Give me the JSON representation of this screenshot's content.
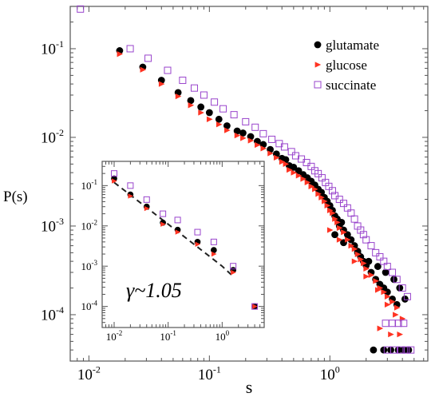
{
  "chart_data": [
    {
      "type": "scatter",
      "xlabel": "s",
      "ylabel": "P(s)",
      "xscale": "log",
      "yscale": "log",
      "xlim": [
        0.007,
        6.5
      ],
      "ylim": [
        3e-05,
        0.3
      ],
      "x_tick_labels": [
        {
          "value": 0.01,
          "base": "10",
          "exp": "-2"
        },
        {
          "value": 0.1,
          "base": "10",
          "exp": "-1"
        },
        {
          "value": 1,
          "base": "10",
          "exp": "0"
        }
      ],
      "y_tick_labels": [
        {
          "value": 0.1,
          "base": "10",
          "exp": "-1"
        },
        {
          "value": 0.01,
          "base": "10",
          "exp": "-2"
        },
        {
          "value": 0.001,
          "base": "10",
          "exp": "-3"
        },
        {
          "value": 0.0001,
          "base": "10",
          "exp": "-4"
        }
      ],
      "legend_position": "top-right",
      "grid": false,
      "series": [
        {
          "name": "glutamate",
          "marker": "filled-circle",
          "color": "#000000",
          "points": [
            [
              0.018,
              0.095
            ],
            [
              0.028,
              0.062
            ],
            [
              0.04,
              0.044
            ],
            [
              0.055,
              0.032
            ],
            [
              0.07,
              0.026
            ],
            [
              0.085,
              0.022
            ],
            [
              0.1,
              0.019
            ],
            [
              0.12,
              0.016
            ],
            [
              0.14,
              0.0135
            ],
            [
              0.17,
              0.0118
            ],
            [
              0.19,
              0.0112
            ],
            [
              0.22,
              0.0102
            ],
            [
              0.25,
              0.009
            ],
            [
              0.28,
              0.0083
            ],
            [
              0.32,
              0.0073
            ],
            [
              0.36,
              0.0065
            ],
            [
              0.4,
              0.0058
            ],
            [
              0.43,
              0.0056
            ],
            [
              0.46,
              0.0048
            ],
            [
              0.5,
              0.0046
            ],
            [
              0.55,
              0.0042
            ],
            [
              0.6,
              0.0038
            ],
            [
              0.65,
              0.0035
            ],
            [
              0.7,
              0.0032
            ],
            [
              0.75,
              0.0029
            ],
            [
              0.8,
              0.0026
            ],
            [
              0.85,
              0.0024
            ],
            [
              0.9,
              0.0021
            ],
            [
              0.95,
              0.0019
            ],
            [
              1.0,
              0.0017
            ],
            [
              1.05,
              0.0015
            ],
            [
              1.1,
              0.0013
            ],
            [
              1.15,
              0.0012
            ],
            [
              1.2,
              0.001
            ],
            [
              1.25,
              0.0011
            ],
            [
              1.3,
              0.0009
            ],
            [
              1.4,
              0.0008
            ],
            [
              1.5,
              0.0007
            ],
            [
              1.6,
              0.0006
            ],
            [
              1.7,
              0.0005
            ],
            [
              1.8,
              0.00045
            ],
            [
              1.9,
              0.0004
            ],
            [
              2.0,
              0.00036
            ],
            [
              2.2,
              0.0003
            ],
            [
              2.4,
              0.00025
            ],
            [
              2.6,
              0.00022
            ],
            [
              2.8,
              0.0002
            ],
            [
              3.0,
              0.00018
            ],
            [
              3.3,
              0.00015
            ],
            [
              3.6,
              0.00013
            ],
            [
              1.1,
              0.0008
            ],
            [
              1.3,
              0.00065
            ],
            [
              1.7,
              0.00052
            ],
            [
              2.1,
              0.0004
            ],
            [
              2.5,
              0.00035
            ],
            [
              2.9,
              0.0003
            ],
            [
              3.4,
              0.00025
            ],
            [
              3.8,
              0.0002
            ],
            [
              4.2,
              0.00015
            ],
            [
              2.3,
              4e-05
            ],
            [
              2.8,
              4e-05
            ],
            [
              3.2,
              4e-05
            ],
            [
              3.7,
              4e-05
            ],
            [
              4.1,
              4e-05
            ],
            [
              4.5,
              4e-05
            ]
          ]
        },
        {
          "name": "glucose",
          "marker": "filled-triangle",
          "color": "#ff3322",
          "points": [
            [
              0.018,
              0.087
            ],
            [
              0.028,
              0.058
            ],
            [
              0.04,
              0.04
            ],
            [
              0.055,
              0.029
            ],
            [
              0.07,
              0.023
            ],
            [
              0.085,
              0.019
            ],
            [
              0.1,
              0.016
            ],
            [
              0.12,
              0.014
            ],
            [
              0.14,
              0.012
            ],
            [
              0.17,
              0.0105
            ],
            [
              0.19,
              0.0098
            ],
            [
              0.22,
              0.0092
            ],
            [
              0.25,
              0.0082
            ],
            [
              0.28,
              0.0075
            ],
            [
              0.32,
              0.0066
            ],
            [
              0.36,
              0.0059
            ],
            [
              0.4,
              0.0053
            ],
            [
              0.43,
              0.005
            ],
            [
              0.46,
              0.0043
            ],
            [
              0.5,
              0.004
            ],
            [
              0.55,
              0.0037
            ],
            [
              0.6,
              0.0034
            ],
            [
              0.65,
              0.0031
            ],
            [
              0.7,
              0.0028
            ],
            [
              0.75,
              0.0026
            ],
            [
              0.8,
              0.0023
            ],
            [
              0.85,
              0.0021
            ],
            [
              0.9,
              0.0019
            ],
            [
              0.95,
              0.0017
            ],
            [
              1.0,
              0.0015
            ],
            [
              1.05,
              0.0014
            ],
            [
              1.1,
              0.0012
            ],
            [
              1.15,
              0.0011
            ],
            [
              1.2,
              0.00095
            ],
            [
              1.3,
              0.00085
            ],
            [
              1.4,
              0.0007
            ],
            [
              1.5,
              0.0006
            ],
            [
              1.6,
              0.00055
            ],
            [
              1.7,
              0.00048
            ],
            [
              1.8,
              0.00042
            ],
            [
              1.9,
              0.00038
            ],
            [
              2.0,
              0.00033
            ],
            [
              2.2,
              0.00028
            ],
            [
              2.4,
              0.00024
            ],
            [
              2.6,
              0.0002
            ],
            [
              2.8,
              0.00018
            ],
            [
              3.0,
              0.00016
            ],
            [
              3.3,
              0.00014
            ],
            [
              3.6,
              0.00012
            ],
            [
              1.0,
              0.0009
            ],
            [
              1.2,
              0.0007
            ],
            [
              1.6,
              0.0004
            ],
            [
              2.0,
              0.00027
            ],
            [
              2.5,
              0.00019
            ],
            [
              3.0,
              0.00013
            ],
            [
              3.5,
              0.0001
            ],
            [
              4.0,
              9e-05
            ],
            [
              2.6,
              7e-05
            ],
            [
              3.2,
              6e-05
            ],
            [
              3.8,
              6e-05
            ]
          ]
        },
        {
          "name": "succinate",
          "marker": "open-square",
          "color": "#9944cc",
          "points": [
            [
              0.0085,
              0.28
            ],
            [
              0.022,
              0.1
            ],
            [
              0.031,
              0.078
            ],
            [
              0.045,
              0.057
            ],
            [
              0.06,
              0.044
            ],
            [
              0.075,
              0.036
            ],
            [
              0.09,
              0.03
            ],
            [
              0.11,
              0.025
            ],
            [
              0.13,
              0.021
            ],
            [
              0.16,
              0.018
            ],
            [
              0.2,
              0.015
            ],
            [
              0.24,
              0.013
            ],
            [
              0.28,
              0.011
            ],
            [
              0.33,
              0.0095
            ],
            [
              0.38,
              0.0085
            ],
            [
              0.42,
              0.0078
            ],
            [
              0.48,
              0.0069
            ],
            [
              0.52,
              0.0062
            ],
            [
              0.58,
              0.0057
            ],
            [
              0.64,
              0.0052
            ],
            [
              0.7,
              0.0047
            ],
            [
              0.75,
              0.0042
            ],
            [
              0.8,
              0.0039
            ],
            [
              0.86,
              0.0035
            ],
            [
              0.92,
              0.0031
            ],
            [
              0.98,
              0.0028
            ],
            [
              1.05,
              0.0025
            ],
            [
              1.1,
              0.0022
            ],
            [
              1.2,
              0.002
            ],
            [
              1.3,
              0.0018
            ],
            [
              1.4,
              0.0016
            ],
            [
              1.5,
              0.0014
            ],
            [
              1.6,
              0.0012
            ],
            [
              1.7,
              0.001
            ],
            [
              1.8,
              0.0009
            ],
            [
              1.9,
              0.0008
            ],
            [
              2.0,
              0.0007
            ],
            [
              2.2,
              0.0006
            ],
            [
              2.4,
              0.0005
            ],
            [
              2.6,
              0.00045
            ],
            [
              2.8,
              0.0004
            ],
            [
              3.0,
              0.00035
            ],
            [
              3.3,
              0.0003
            ],
            [
              3.6,
              0.00025
            ],
            [
              4.0,
              0.0002
            ],
            [
              4.4,
              0.00016
            ],
            [
              2.9,
              8e-05
            ],
            [
              3.3,
              8e-05
            ],
            [
              3.7,
              8e-05
            ],
            [
              4.1,
              8e-05
            ],
            [
              3.0,
              4e-05
            ],
            [
              3.4,
              4e-05
            ],
            [
              3.9,
              4e-05
            ],
            [
              4.3,
              4e-05
            ],
            [
              4.7,
              4e-05
            ]
          ]
        }
      ],
      "legend": [
        {
          "label": "glutamate",
          "marker": "filled-circle",
          "color": "#000000"
        },
        {
          "label": "glucose",
          "marker": "filled-triangle",
          "color": "#ff3322"
        },
        {
          "label": "succinate",
          "marker": "open-square",
          "color": "#9944cc"
        }
      ]
    },
    {
      "type": "scatter",
      "role": "inset",
      "xscale": "log",
      "yscale": "log",
      "xlim": [
        0.006,
        6
      ],
      "ylim": [
        3e-05,
        0.4
      ],
      "x_tick_labels": [
        {
          "value": 0.01,
          "base": "10",
          "exp": "-2"
        },
        {
          "value": 0.1,
          "base": "10",
          "exp": "-1"
        },
        {
          "value": 1,
          "base": "10",
          "exp": "0"
        }
      ],
      "y_tick_labels": [
        {
          "value": 0.1,
          "base": "10",
          "exp": "-1"
        },
        {
          "value": 0.01,
          "base": "10",
          "exp": "-2"
        },
        {
          "value": 0.001,
          "base": "10",
          "exp": "-3"
        },
        {
          "value": 0.0001,
          "base": "10",
          "exp": "-4"
        }
      ],
      "annotation": "γ~1.05",
      "fit_line": {
        "style": "dashed",
        "points": [
          [
            0.01,
            0.12
          ],
          [
            0.1,
            0.011
          ],
          [
            1.0,
            0.001
          ],
          [
            1.5,
            0.0006
          ]
        ]
      },
      "series": [
        {
          "name": "glutamate",
          "marker": "filled-circle",
          "color": "#000000",
          "points": [
            [
              0.01,
              0.15
            ],
            [
              0.02,
              0.06
            ],
            [
              0.04,
              0.03
            ],
            [
              0.08,
              0.012
            ],
            [
              0.15,
              0.008
            ],
            [
              0.35,
              0.004
            ],
            [
              0.7,
              0.0025
            ],
            [
              1.6,
              0.0008
            ],
            [
              4.0,
              0.0001
            ]
          ]
        },
        {
          "name": "glucose",
          "marker": "filled-triangle",
          "color": "#ff3322",
          "points": [
            [
              0.01,
              0.13
            ],
            [
              0.02,
              0.055
            ],
            [
              0.04,
              0.027
            ],
            [
              0.08,
              0.011
            ],
            [
              0.15,
              0.007
            ],
            [
              0.35,
              0.0035
            ],
            [
              0.7,
              0.002
            ],
            [
              1.6,
              0.0007
            ],
            [
              4.0,
              0.0001
            ]
          ]
        },
        {
          "name": "succinate",
          "marker": "open-square",
          "color": "#9944cc",
          "points": [
            [
              0.01,
              0.2
            ],
            [
              0.02,
              0.1
            ],
            [
              0.04,
              0.045
            ],
            [
              0.08,
              0.02
            ],
            [
              0.15,
              0.014
            ],
            [
              0.35,
              0.007
            ],
            [
              0.7,
              0.004
            ],
            [
              1.6,
              0.001
            ],
            [
              4.0,
              0.0001
            ]
          ]
        }
      ]
    }
  ]
}
